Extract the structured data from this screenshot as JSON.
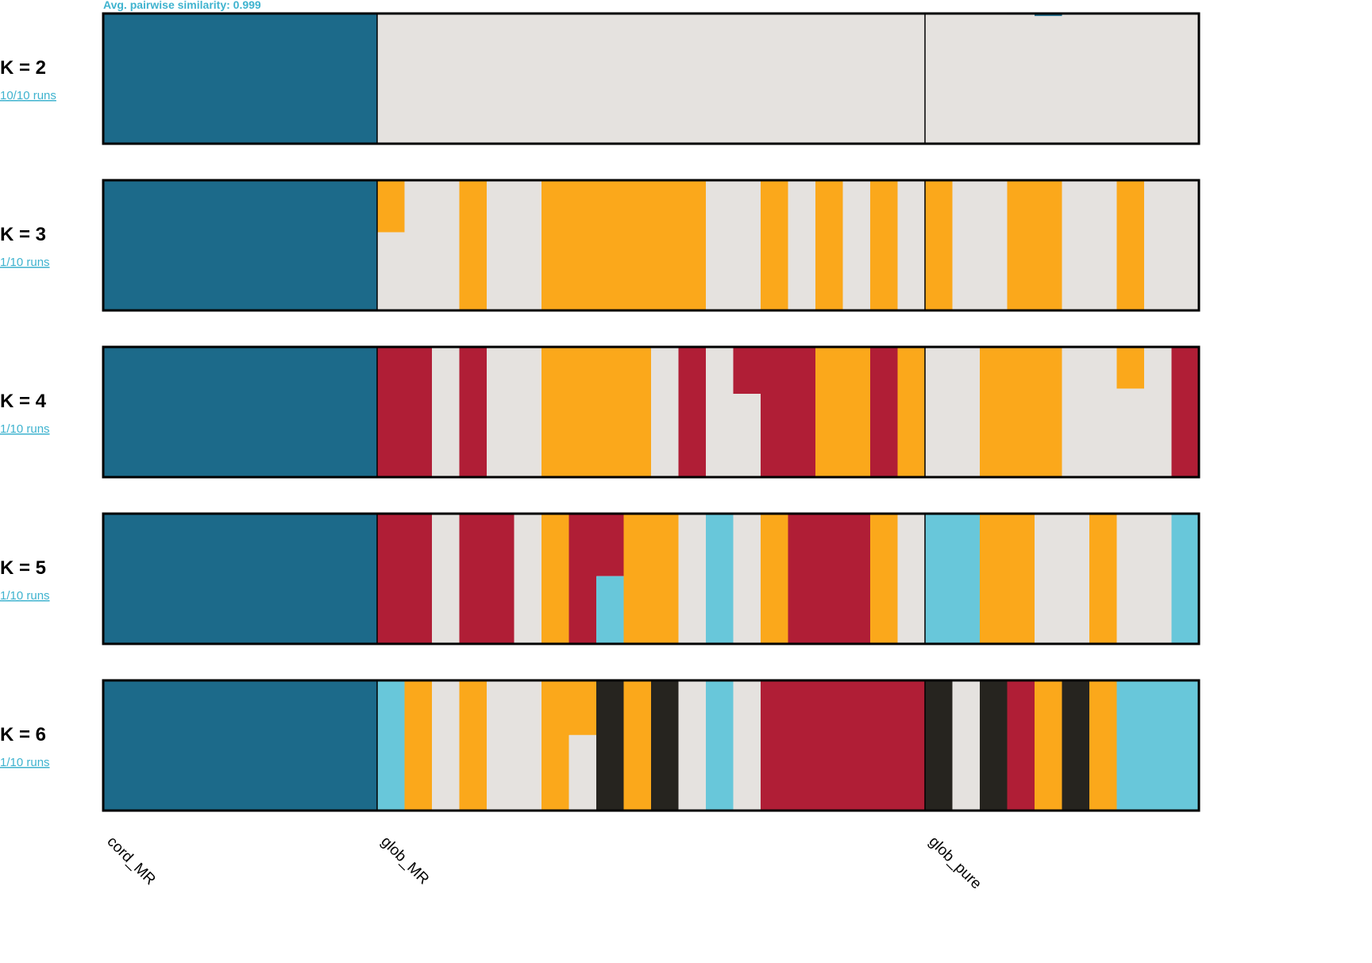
{
  "header": {
    "similarity_text": "Avg. pairwise similarity: 0.999"
  },
  "chart_data": {
    "type": "structure-barplot",
    "individuals": 40,
    "populations": [
      {
        "name": "cord_MR",
        "start": 0,
        "count": 10
      },
      {
        "name": "glob_MR",
        "start": 10,
        "count": 20
      },
      {
        "name": "glob_pure",
        "start": 30,
        "count": 10
      }
    ],
    "colors": {
      "blue": "#1c6a8a",
      "light": "#e5e2df",
      "orange": "#fba81b",
      "red": "#b01e36",
      "cyan": "#68c7da",
      "black": "#26241f"
    },
    "rows": [
      {
        "k_label": "K = 2",
        "runs_label": "10/10 runs",
        "individuals": [
          "blue",
          "blue",
          "blue",
          "blue",
          "blue",
          "blue",
          "blue",
          "blue",
          "blue",
          "blue",
          "light",
          "light",
          "light",
          "light",
          "light",
          "light",
          "light",
          "light",
          "light",
          "light",
          "light",
          "light",
          "light",
          "light",
          "light",
          "light",
          "light",
          "light",
          "light",
          "light",
          "light",
          "light",
          "light",
          [
            [
              "blue",
              0.01
            ],
            [
              "light",
              0.99
            ]
          ],
          [
            [
              "blue",
              0.02
            ],
            [
              "light",
              0.98
            ]
          ],
          [
            [
              "blue",
              0.01
            ],
            [
              "light",
              0.99
            ]
          ],
          "light",
          "light",
          "light",
          "light"
        ]
      },
      {
        "k_label": "K = 3",
        "runs_label": "1/10 runs",
        "individuals": [
          "blue",
          "blue",
          "blue",
          "blue",
          "blue",
          "blue",
          "blue",
          "blue",
          "blue",
          "blue",
          [
            [
              "orange",
              0.4
            ],
            [
              "light",
              0.6
            ]
          ],
          "light",
          "light",
          "orange",
          "light",
          "light",
          "orange",
          "orange",
          "orange",
          "orange",
          "orange",
          "orange",
          "light",
          "light",
          "orange",
          "light",
          "orange",
          "light",
          "orange",
          "light",
          "orange",
          "light",
          "light",
          "orange",
          "orange",
          "light",
          "light",
          "orange",
          "light",
          "light"
        ]
      },
      {
        "k_label": "K = 4",
        "runs_label": "1/10 runs",
        "individuals": [
          "blue",
          "blue",
          "blue",
          "blue",
          "blue",
          "blue",
          "blue",
          "blue",
          "blue",
          "blue",
          "red",
          "red",
          "light",
          "red",
          "light",
          "light",
          "orange",
          "orange",
          "orange",
          "orange",
          "light",
          "red",
          "light",
          [
            [
              "red",
              0.36
            ],
            [
              "light",
              0.64
            ]
          ],
          "red",
          "red",
          "orange",
          "orange",
          "red",
          "orange",
          "light",
          "light",
          "orange",
          "orange",
          "orange",
          "light",
          "light",
          [
            [
              "orange",
              0.32
            ],
            [
              "light",
              0.68
            ]
          ],
          "light",
          "red"
        ]
      },
      {
        "k_label": "K = 5",
        "runs_label": "1/10 runs",
        "individuals": [
          "blue",
          "blue",
          "blue",
          "blue",
          "blue",
          "blue",
          "blue",
          "blue",
          "blue",
          "blue",
          "red",
          "red",
          "light",
          "red",
          "red",
          "light",
          "orange",
          "red",
          [
            [
              "red",
              0.48
            ],
            [
              "cyan",
              0.52
            ]
          ],
          "orange",
          "orange",
          "light",
          "cyan",
          "light",
          "orange",
          "red",
          "red",
          "red",
          "orange",
          "light",
          "cyan",
          "cyan",
          "orange",
          "orange",
          "light",
          "light",
          "orange",
          "light",
          "light",
          "cyan"
        ]
      },
      {
        "k_label": "K = 6",
        "runs_label": "1/10 runs",
        "individuals": [
          "blue",
          "blue",
          "blue",
          "blue",
          "blue",
          "blue",
          "blue",
          "blue",
          "blue",
          "blue",
          "cyan",
          "orange",
          "light",
          "orange",
          "light",
          "light",
          "orange",
          [
            [
              "orange",
              0.42
            ],
            [
              "light",
              0.58
            ]
          ],
          "black",
          "orange",
          "black",
          "light",
          "cyan",
          "light",
          "red",
          "red",
          "red",
          "red",
          "red",
          "red",
          "black",
          "light",
          "black",
          "red",
          "orange",
          "black",
          "orange",
          "cyan",
          "cyan",
          "cyan"
        ]
      }
    ]
  }
}
